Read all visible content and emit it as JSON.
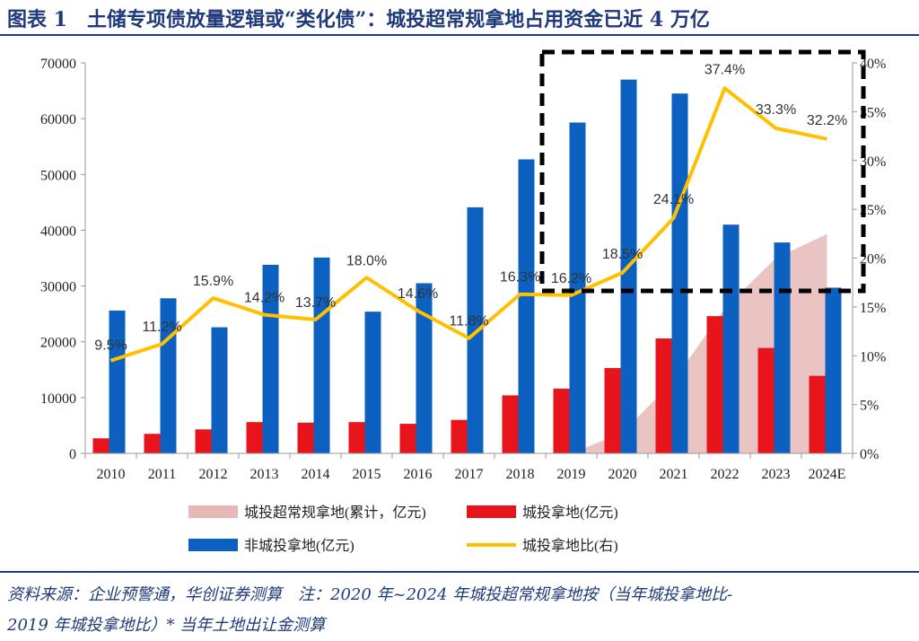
{
  "title": "图表 1　土储专项债放量逻辑或“类化债”：城投超常规拿地占用资金已近 4 万亿",
  "colors": {
    "blue": "#0c60c0",
    "red": "#e8141c",
    "yellow": "#ffc000",
    "pink": "#e6b8b8",
    "title": "#1f3a7a"
  },
  "chart_data": {
    "type": "bar",
    "categories": [
      "2010",
      "2011",
      "2012",
      "2013",
      "2014",
      "2015",
      "2016",
      "2017",
      "2018",
      "2019",
      "2020",
      "2021",
      "2022",
      "2023",
      "2024E"
    ],
    "left_axis": {
      "min": 0,
      "max": 70000,
      "ticks": [
        "0",
        "10000",
        "20000",
        "30000",
        "40000",
        "50000",
        "60000",
        "70000"
      ]
    },
    "right_axis": {
      "min": 0,
      "max": 40,
      "ticks": [
        "0%",
        "5%",
        "10%",
        "15%",
        "20%",
        "25%",
        "30%",
        "35%",
        "40%"
      ]
    },
    "series": [
      {
        "name": "非城投拿地(亿元)",
        "type": "bar",
        "axis": "left",
        "values": [
          25600,
          27800,
          22600,
          33800,
          35100,
          25400,
          30500,
          44100,
          52700,
          59300,
          67000,
          64500,
          41000,
          37800,
          29700
        ]
      },
      {
        "name": "城投拿地(亿元)",
        "type": "bar",
        "axis": "left",
        "values": [
          2700,
          3500,
          4300,
          5600,
          5500,
          5600,
          5300,
          6000,
          10400,
          11600,
          15300,
          20600,
          24600,
          18900,
          13900
        ]
      },
      {
        "name": "城投超常规拿地(累计，亿元)",
        "type": "area",
        "axis": "left",
        "values": [
          null,
          null,
          null,
          null,
          null,
          null,
          null,
          null,
          null,
          0,
          3700,
          13000,
          26000,
          35000,
          39300
        ]
      },
      {
        "name": "城投拿地比(右)",
        "type": "line",
        "axis": "right",
        "values": [
          9.5,
          11.2,
          15.9,
          14.2,
          13.7,
          18.0,
          14.6,
          11.8,
          16.3,
          16.2,
          18.5,
          24.1,
          37.4,
          33.3,
          32.2
        ],
        "labels": [
          "9.5%",
          "11.2%",
          "15.9%",
          "14.2%",
          "13.7%",
          "18.0%",
          "14.6%",
          "11.8%",
          "16.3%",
          "16.2%",
          "18.5%",
          "24.1%",
          "37.4%",
          "33.3%",
          "32.2%"
        ]
      }
    ],
    "legend": [
      {
        "key": "pink",
        "label": "城投超常规拿地(累计，亿元)"
      },
      {
        "key": "red",
        "label": "城投拿地(亿元)"
      },
      {
        "key": "blue",
        "label": "非城投拿地(亿元)"
      },
      {
        "key": "yellow",
        "label": "城投拿地比(右)"
      }
    ],
    "highlight_box": {
      "from": "2019",
      "to": "2024E",
      "style": "dashed"
    }
  },
  "source": {
    "line1": "资料来源：企业预警通，华创证券测算　注：2020 年~2024 年城投超常规拿地按（当年城投拿地比-",
    "line2": "2019 年城投拿地比）* 当年土地出让金测算"
  }
}
